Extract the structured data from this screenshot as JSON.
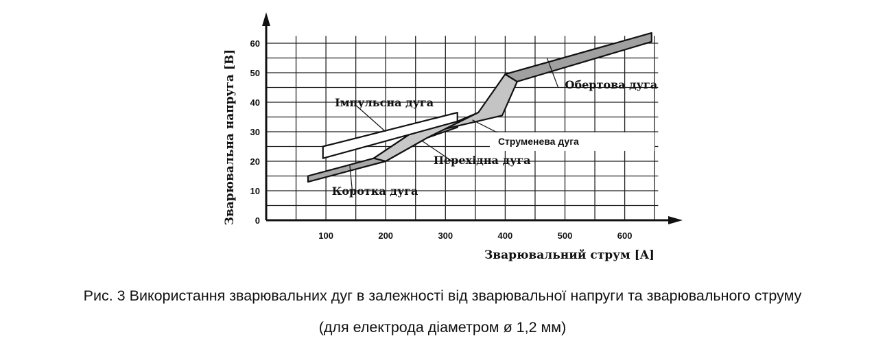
{
  "chart_data": {
    "type": "area",
    "title": "",
    "xlabel": "Зварювальний струм [A]",
    "ylabel": "Зварювальна напруга [B]",
    "xlim": [
      0,
      700
    ],
    "ylim": [
      0,
      65
    ],
    "x_ticks": [
      "100",
      "200",
      "300",
      "400",
      "500",
      "600"
    ],
    "y_ticks": [
      "0",
      "10",
      "20",
      "30",
      "40",
      "50",
      "60"
    ],
    "grid": true,
    "regions": [
      {
        "label": "Коротка дуга",
        "fill": "#a8a8a8",
        "polygon": [
          [
            70,
            15
          ],
          [
            180,
            21
          ],
          [
            250,
            30.5
          ],
          [
            320,
            33.5
          ],
          [
            320,
            31.5
          ],
          [
            270,
            28
          ],
          [
            200,
            20
          ],
          [
            70,
            13
          ]
        ]
      },
      {
        "label": "Перехідна дуга",
        "fill": "#c8c8c8",
        "polygon": [
          [
            180,
            21
          ],
          [
            250,
            30.5
          ],
          [
            320,
            33.5
          ],
          [
            355,
            36.5
          ],
          [
            300,
            31
          ],
          [
            270,
            28
          ],
          [
            200,
            20
          ]
        ]
      },
      {
        "label": "Імпульсна дуга",
        "fill": "#ffffff",
        "polygon": [
          [
            95,
            25
          ],
          [
            320,
            36.5
          ],
          [
            320,
            33.5
          ],
          [
            95,
            21
          ]
        ]
      },
      {
        "label": "Струменева дуга",
        "fill": "#c4c4c4",
        "polygon": [
          [
            300,
            31
          ],
          [
            355,
            36.5
          ],
          [
            400,
            49.5
          ],
          [
            420,
            47
          ],
          [
            395,
            35.5
          ]
        ]
      },
      {
        "label": "Обертова дуга",
        "fill": "#a0a0a0",
        "polygon": [
          [
            400,
            49.5
          ],
          [
            645,
            63.5
          ],
          [
            645,
            60.5
          ],
          [
            420,
            47
          ]
        ]
      }
    ],
    "annotations": [
      {
        "text": "Імпульсна дуга",
        "x": 115,
        "y": 40,
        "arrow_to": [
          200,
          30
        ]
      },
      {
        "text": "Коротка дуга",
        "x": 110,
        "y": 10,
        "arrow_to": [
          140,
          18.5
        ]
      },
      {
        "text": "Перехідна дуга",
        "x": 280,
        "y": 20.5,
        "arrow_to": [
          260,
          27
        ]
      },
      {
        "text": "Струменева дуга",
        "x": 388,
        "y": 27,
        "arrow_to": [
          345,
          34
        ]
      },
      {
        "text": "Обертова дуга",
        "x": 500,
        "y": 46,
        "arrow_to": [
          470,
          55
        ]
      }
    ]
  },
  "caption": {
    "line1": "Рис. 3 Використання зварювальних дуг в залежності від  зварювальної напруги та зварювального струму",
    "line2": "(для електрода діаметром ø 1,2 мм)"
  }
}
